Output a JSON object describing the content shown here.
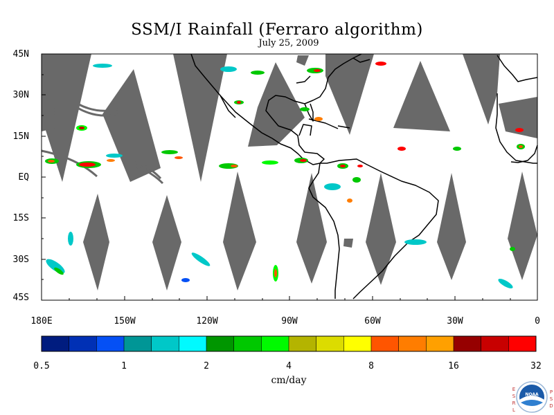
{
  "title": "SSM/I Rainfall (Ferraro algorithm)",
  "subtitle": "July 25, 2009",
  "map": {
    "lat_labels": [
      "45N",
      "30N",
      "15N",
      "EQ",
      "15S",
      "30S",
      "45S"
    ],
    "lon_labels": [
      "180E",
      "150W",
      "120W",
      "90W",
      "60W",
      "30W",
      "0"
    ],
    "lat_range": [
      -45,
      45
    ],
    "lon_range": [
      -180,
      0
    ],
    "land_outline_color": "#000000",
    "no_data_color": "#696969",
    "background_color": "#ffffff"
  },
  "colorbar": {
    "colors": [
      "#001c7f",
      "#0030b5",
      "#0550f5",
      "#009696",
      "#00c8c8",
      "#00faff",
      "#009600",
      "#00c800",
      "#00fa00",
      "#b4b400",
      "#dcdc00",
      "#ffff00",
      "#ff5500",
      "#ff7d00",
      "#ffa000",
      "#960000",
      "#c80000",
      "#ff0000"
    ],
    "tick_labels": [
      "0.5",
      "1",
      "2",
      "4",
      "8",
      "16",
      "32"
    ],
    "units": "cm/day"
  },
  "logo": {
    "left_letters": [
      "E",
      "S",
      "R",
      "L"
    ],
    "right_letters": [
      "P",
      "S",
      "D"
    ],
    "center_text": "NOAA",
    "colors": {
      "ring": "#ffffff",
      "sky": "#1a5aa8",
      "sea": "#2f7fd0",
      "gull": "#ffffff"
    }
  }
}
